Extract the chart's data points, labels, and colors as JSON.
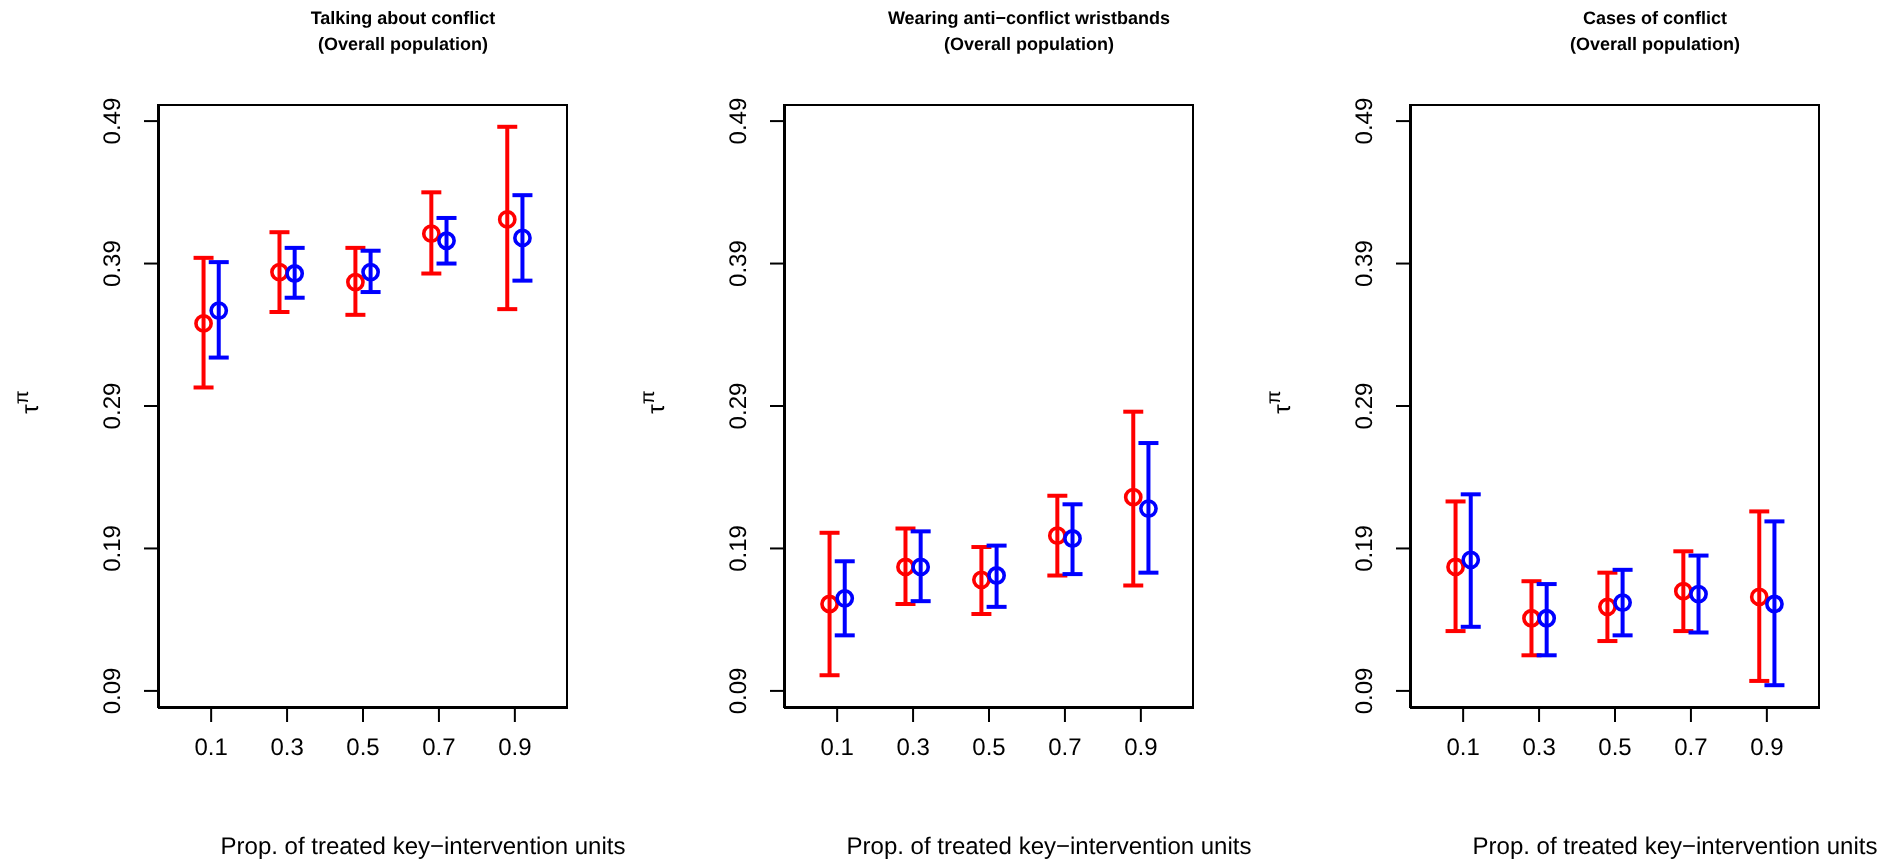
{
  "chart_data": [
    {
      "type": "scatter",
      "title": "Talking about conflict\n(Overall population)",
      "xlabel": "Prop. of treated key−intervention units",
      "ylabel": "τ$^{π}$",
      "xlim": [
        -0.04,
        1.04
      ],
      "xticks": [
        0.1,
        0.3,
        0.5,
        0.7,
        0.9
      ],
      "ylim": [
        0.078,
        0.502
      ],
      "yticks": [
        0.09,
        0.19,
        0.29,
        0.39,
        0.49
      ],
      "marker": "circle",
      "grid": false,
      "legend": false,
      "series": [
        {
          "color": "#ff0000",
          "x": [
            0.08,
            0.28,
            0.48,
            0.68,
            0.88
          ],
          "values": [
            0.348,
            0.384,
            0.377,
            0.411,
            0.421
          ],
          "errors": [
            [
              0.303,
              0.394
            ],
            [
              0.356,
              0.412
            ],
            [
              0.354,
              0.401
            ],
            [
              0.383,
              0.44
            ],
            [
              0.358,
              0.486
            ]
          ]
        },
        {
          "color": "#0000ff",
          "x": [
            0.12,
            0.32,
            0.52,
            0.72,
            0.92
          ],
          "values": [
            0.357,
            0.383,
            0.384,
            0.406,
            0.408
          ],
          "errors": [
            [
              0.324,
              0.391
            ],
            [
              0.366,
              0.401
            ],
            [
              0.37,
              0.399
            ],
            [
              0.39,
              0.422
            ],
            [
              0.378,
              0.438
            ]
          ]
        }
      ]
    },
    {
      "type": "scatter",
      "title": "Wearing anti−conflict wristbands\n(Overall population)",
      "xlabel": "Prop. of treated key−intervention units",
      "ylabel": "τ$^{π}$",
      "xlim": [
        -0.04,
        1.04
      ],
      "xticks": [
        0.1,
        0.3,
        0.5,
        0.7,
        0.9
      ],
      "ylim": [
        0.078,
        0.502
      ],
      "yticks": [
        0.09,
        0.19,
        0.29,
        0.39,
        0.49
      ],
      "marker": "circle",
      "grid": false,
      "legend": false,
      "series": [
        {
          "color": "#ff0000",
          "x": [
            0.08,
            0.28,
            0.48,
            0.68,
            0.88
          ],
          "values": [
            0.151,
            0.177,
            0.168,
            0.199,
            0.226
          ],
          "errors": [
            [
              0.101,
              0.201
            ],
            [
              0.151,
              0.204
            ],
            [
              0.144,
              0.191
            ],
            [
              0.171,
              0.227
            ],
            [
              0.164,
              0.286
            ]
          ]
        },
        {
          "color": "#0000ff",
          "x": [
            0.12,
            0.32,
            0.52,
            0.72,
            0.92
          ],
          "values": [
            0.155,
            0.177,
            0.171,
            0.197,
            0.218
          ],
          "errors": [
            [
              0.129,
              0.181
            ],
            [
              0.153,
              0.202
            ],
            [
              0.149,
              0.192
            ],
            [
              0.172,
              0.221
            ],
            [
              0.173,
              0.264
            ]
          ]
        }
      ]
    },
    {
      "type": "scatter",
      "title": "Cases of conflict\n(Overall population)",
      "xlabel": "Prop. of treated key−intervention units",
      "ylabel": "τ$^{π}$",
      "xlim": [
        -0.04,
        1.04
      ],
      "xticks": [
        0.1,
        0.3,
        0.5,
        0.7,
        0.9
      ],
      "ylim": [
        0.078,
        0.502
      ],
      "yticks": [
        0.09,
        0.19,
        0.29,
        0.39,
        0.49
      ],
      "marker": "circle",
      "grid": false,
      "legend": false,
      "series": [
        {
          "color": "#ff0000",
          "x": [
            0.08,
            0.28,
            0.48,
            0.68,
            0.88
          ],
          "values": [
            0.177,
            0.141,
            0.149,
            0.16,
            0.156
          ],
          "errors": [
            [
              0.132,
              0.223
            ],
            [
              0.115,
              0.167
            ],
            [
              0.125,
              0.173
            ],
            [
              0.132,
              0.188
            ],
            [
              0.097,
              0.216
            ]
          ]
        },
        {
          "color": "#0000ff",
          "x": [
            0.12,
            0.32,
            0.52,
            0.72,
            0.92
          ],
          "values": [
            0.182,
            0.141,
            0.152,
            0.158,
            0.151
          ],
          "errors": [
            [
              0.135,
              0.228
            ],
            [
              0.115,
              0.165
            ],
            [
              0.129,
              0.175
            ],
            [
              0.131,
              0.185
            ],
            [
              0.094,
              0.209
            ]
          ]
        }
      ]
    }
  ]
}
